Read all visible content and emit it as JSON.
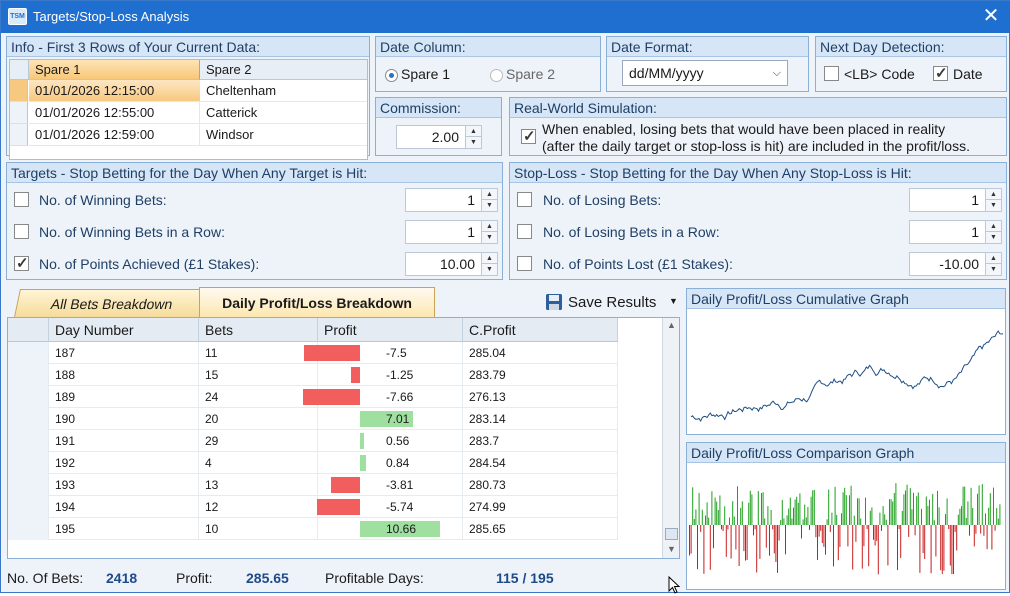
{
  "window": {
    "title": "Targets/Stop-Loss Analysis",
    "icon_text": "TSM"
  },
  "info": {
    "title": "Info - First 3 Rows of Your Current Data:",
    "columns": [
      "Spare 1",
      "Spare 2"
    ],
    "rows": [
      [
        "01/01/2026 12:15:00",
        "Cheltenham"
      ],
      [
        "01/01/2026 12:55:00",
        "Catterick"
      ],
      [
        "01/01/2026 12:59:00",
        "Windsor"
      ]
    ]
  },
  "date_column": {
    "title": "Date Column:",
    "option1": "Spare 1",
    "option2": "Spare 2",
    "selected": "Spare 1"
  },
  "date_format": {
    "title": "Date Format:",
    "value": "dd/MM/yyyy"
  },
  "next_day": {
    "title": "Next Day Detection:",
    "lb_code": "<LB> Code",
    "date": "Date",
    "lb_checked": false,
    "date_checked": true
  },
  "commission": {
    "title": "Commission:",
    "value": "2.00"
  },
  "simulation": {
    "title": "Real-World Simulation:",
    "line1": "When enabled, losing bets that would have been placed in reality",
    "line2": "(after the daily target or stop-loss is hit) are included in the profit/loss.",
    "checked": true
  },
  "targets": {
    "title": "Targets - Stop Betting for the Day When Any Target is Hit:",
    "items": [
      {
        "label": "No. of Winning Bets:",
        "value": "1",
        "checked": false
      },
      {
        "label": "No. of Winning Bets in a Row:",
        "value": "1",
        "checked": false
      },
      {
        "label": "No. of Points Achieved (£1 Stakes):",
        "value": "10.00",
        "checked": true
      }
    ]
  },
  "stoploss": {
    "title": "Stop-Loss - Stop Betting for the Day When Any Stop-Loss is Hit:",
    "items": [
      {
        "label": "No. of Losing Bets:",
        "value": "1",
        "checked": false
      },
      {
        "label": "No. of Losing Bets in a Row:",
        "value": "1",
        "checked": false
      },
      {
        "label": "No. of Points Lost (£1 Stakes):",
        "value": "-10.00",
        "checked": false
      }
    ]
  },
  "tabs": {
    "tab1": "All Bets Breakdown",
    "tab2": "Daily Profit/Loss Breakdown",
    "active": "Daily Profit/Loss Breakdown"
  },
  "save": {
    "label": "Save Results"
  },
  "table": {
    "columns": [
      "Day Number",
      "Bets",
      "Profit",
      "C.Profit"
    ],
    "rows": [
      {
        "day": "187",
        "bets": "11",
        "profit": "-7.5",
        "cprofit": "285.04",
        "p": -7.5
      },
      {
        "day": "188",
        "bets": "15",
        "profit": "-1.25",
        "cprofit": "283.79",
        "p": -1.25
      },
      {
        "day": "189",
        "bets": "24",
        "profit": "-7.66",
        "cprofit": "276.13",
        "p": -7.66
      },
      {
        "day": "190",
        "bets": "20",
        "profit": "7.01",
        "cprofit": "283.14",
        "p": 7.01
      },
      {
        "day": "191",
        "bets": "29",
        "profit": "0.56",
        "cprofit": "283.7",
        "p": 0.56
      },
      {
        "day": "192",
        "bets": "4",
        "profit": "0.84",
        "cprofit": "284.54",
        "p": 0.84
      },
      {
        "day": "193",
        "bets": "13",
        "profit": "-3.81",
        "cprofit": "280.73",
        "p": -3.81
      },
      {
        "day": "194",
        "bets": "12",
        "profit": "-5.74",
        "cprofit": "274.99",
        "p": -5.74
      },
      {
        "day": "195",
        "bets": "10",
        "profit": "10.66",
        "cprofit": "285.65",
        "p": 10.66
      }
    ]
  },
  "footer": {
    "bets_label": "No. Of Bets:",
    "bets_value": "2418",
    "profit_label": "Profit:",
    "profit_value": "285.65",
    "days_label": "Profitable Days:",
    "days_value": "115 / 195"
  },
  "cumulative_graph": {
    "title": "Daily Profit/Loss Cumulative Graph"
  },
  "comparison_graph": {
    "title": "Daily Profit/Loss Comparison Graph"
  },
  "colors": {
    "accent": "#1e6fd0",
    "negative_bar": "#f25d5d",
    "positive_bar": "#9fe0a0",
    "line": "#1e4f86",
    "graph_green": "#1fa01f",
    "graph_red": "#c81f1f"
  }
}
